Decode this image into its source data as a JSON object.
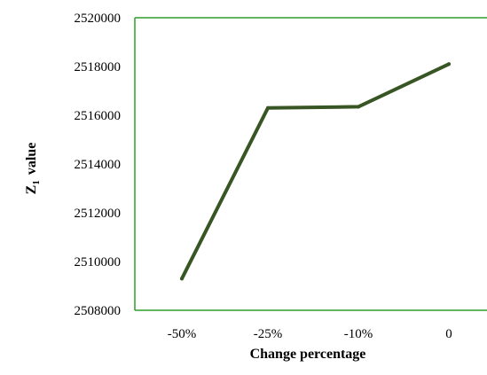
{
  "chart_data": {
    "type": "line",
    "title": "",
    "xlabel": "Change percentage",
    "ylabel": {
      "main": "Z",
      "subscript": "1",
      "suffix": "value"
    },
    "categories": [
      "-50%",
      "-25%",
      "-10%",
      "0"
    ],
    "series": [
      {
        "values": [
          2509300,
          2516300,
          2516350,
          2518100
        ]
      }
    ],
    "ylim": [
      2508000,
      2520000
    ],
    "yticks": [
      "2508000",
      "2510000",
      "2512000",
      "2514000",
      "2516000",
      "2518000",
      "2520000"
    ],
    "grid": false,
    "legend": "none"
  },
  "colors": {
    "line": "#375623",
    "frame": "#2e9e2e",
    "text": "#000000"
  }
}
